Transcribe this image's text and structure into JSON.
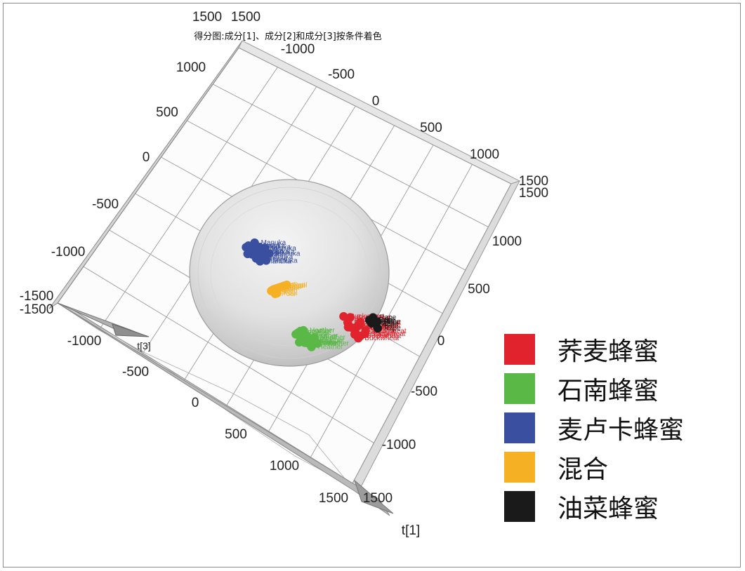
{
  "chart_data": {
    "type": "scatter",
    "projection": "3d",
    "title": "得分图:成分[1]、成分[2]和成分[3]按条件着色",
    "xlabel": "t[1]",
    "zlabel": "t[3]",
    "grid": true,
    "confidence_ellipsoid": true,
    "legend_position": "right",
    "tick_labels": {
      "top_edge": [
        "1500",
        "1500",
        "-1000",
        "-500",
        "0",
        "500",
        "1000",
        "1500"
      ],
      "left_edge": [
        "1000",
        "500",
        "0",
        "-500",
        "-1000",
        "-1500",
        "-1500"
      ],
      "right_edge": [
        "1500",
        "1000",
        "500",
        "0",
        "-500",
        "-1000"
      ],
      "bottom_edge": [
        "-1000",
        "-500",
        "0",
        "500",
        "1000",
        "1500",
        "1500"
      ]
    },
    "series": [
      {
        "name": "荞麦蜂蜜",
        "label": "Buckwheat",
        "color": "#e0232c",
        "points": [
          [
            950,
            -300,
            0
          ],
          [
            900,
            -360,
            0
          ],
          [
            880,
            -420,
            0
          ],
          [
            920,
            -480,
            0
          ],
          [
            980,
            -520,
            0
          ],
          [
            1000,
            -450,
            0
          ],
          [
            1050,
            -400,
            0
          ],
          [
            1100,
            -350,
            0
          ],
          [
            1120,
            -300,
            0
          ],
          [
            960,
            -580,
            0
          ],
          [
            1010,
            -620,
            0
          ],
          [
            1060,
            -560,
            0
          ],
          [
            1150,
            -480,
            0
          ],
          [
            1180,
            -420,
            0
          ],
          [
            830,
            -340,
            0
          ],
          [
            870,
            -500,
            0
          ]
        ]
      },
      {
        "name": "石南蜂蜜",
        "label": "Heather",
        "color": "#5ab847",
        "points": [
          [
            -150,
            -1100,
            0
          ],
          [
            -100,
            -1050,
            0
          ],
          [
            -50,
            -1000,
            0
          ],
          [
            0,
            -1080,
            0
          ],
          [
            50,
            -1030,
            0
          ],
          [
            100,
            -1120,
            0
          ],
          [
            150,
            -1060,
            0
          ],
          [
            -80,
            -1150,
            0
          ],
          [
            -20,
            -1180,
            0
          ],
          [
            40,
            -1160,
            0
          ],
          [
            90,
            -1200,
            0
          ],
          [
            -120,
            -1220,
            0
          ],
          [
            180,
            -1000,
            0
          ],
          [
            220,
            -1080,
            0
          ],
          [
            10,
            -960,
            0
          ]
        ]
      },
      {
        "name": "麦卢卡蜂蜜",
        "label": "Manuka",
        "color": "#3a4fa0",
        "points": [
          [
            -700,
            100,
            0
          ],
          [
            -650,
            150,
            0
          ],
          [
            -600,
            80,
            0
          ],
          [
            -550,
            200,
            0
          ],
          [
            -500,
            120,
            0
          ],
          [
            -450,
            60,
            0
          ],
          [
            -620,
            20,
            0
          ],
          [
            -560,
            -20,
            0
          ],
          [
            -500,
            -40,
            0
          ],
          [
            -700,
            -10,
            0
          ],
          [
            -400,
            160,
            0
          ],
          [
            -350,
            250,
            0
          ],
          [
            -300,
            180,
            0
          ],
          [
            -450,
            220,
            0
          ],
          [
            -520,
            260,
            0
          ],
          [
            -380,
            30,
            0
          ]
        ]
      },
      {
        "name": "混合",
        "label": "Pool",
        "color": "#f5b023",
        "points": [
          [
            -420,
            -500,
            0
          ],
          [
            -380,
            -460,
            0
          ],
          [
            -340,
            -430,
            0
          ],
          [
            -300,
            -400,
            0
          ],
          [
            -260,
            -370,
            0
          ],
          [
            -220,
            -340,
            0
          ],
          [
            -180,
            -310,
            0
          ],
          [
            -140,
            -280,
            0
          ],
          [
            -100,
            -250,
            0
          ],
          [
            -360,
            -520,
            0
          ],
          [
            -320,
            -490,
            0
          ]
        ]
      },
      {
        "name": "油菜蜂蜜",
        "label": "Rape",
        "color": "#1a1a1a",
        "points": [
          [
            1380,
            -100,
            0
          ],
          [
            1360,
            -150,
            0
          ],
          [
            1400,
            -200,
            0
          ],
          [
            1330,
            -220,
            0
          ],
          [
            1420,
            -260,
            0
          ],
          [
            1300,
            -180,
            0
          ],
          [
            1440,
            -140,
            0
          ]
        ]
      }
    ]
  }
}
